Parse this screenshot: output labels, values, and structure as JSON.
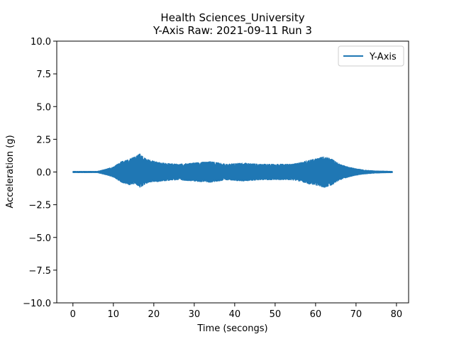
{
  "chart_data": {
    "type": "line",
    "title_line1": "Health Sciences_University",
    "title_line2": "Y-Axis Raw: 2021-09-11 Run 3",
    "xlabel": "Time (secongs)",
    "ylabel": "Acceleration (g)",
    "xlim": [
      -4,
      83
    ],
    "ylim": [
      -10.0,
      10.0
    ],
    "xticks": [
      0,
      10,
      20,
      30,
      40,
      50,
      60,
      70,
      80
    ],
    "xtick_labels": [
      "0",
      "10",
      "20",
      "30",
      "40",
      "50",
      "60",
      "70",
      "80"
    ],
    "yticks": [
      -10.0,
      -7.5,
      -5.0,
      -2.5,
      0.0,
      2.5,
      5.0,
      7.5,
      10.0
    ],
    "ytick_labels": [
      "−10.0",
      "−7.5",
      "−5.0",
      "−2.5",
      "0.0",
      "2.5",
      "5.0",
      "7.5",
      "10.0"
    ],
    "grid": false,
    "legend_position": "top-right",
    "series": [
      {
        "name": "Y-Axis",
        "color": "#1f77b4",
        "x_range": [
          0,
          79
        ],
        "envelope": {
          "t": [
            0,
            6,
            8,
            10,
            12,
            14,
            15.5,
            16.5,
            17.5,
            19,
            22,
            26,
            30,
            34,
            38,
            42,
            46,
            50,
            54,
            56,
            58,
            60,
            62,
            64,
            66,
            68,
            70,
            72,
            75,
            79
          ],
          "upper": [
            0.05,
            0.05,
            0.2,
            0.4,
            0.8,
            1.0,
            1.2,
            1.45,
            1.1,
            0.9,
            0.7,
            0.6,
            0.7,
            0.8,
            0.6,
            0.7,
            0.6,
            0.6,
            0.6,
            0.7,
            0.9,
            1.0,
            1.2,
            1.0,
            0.6,
            0.4,
            0.25,
            0.15,
            0.08,
            0.05
          ],
          "lower": [
            -0.05,
            -0.05,
            -0.2,
            -0.4,
            -0.8,
            -1.0,
            -0.9,
            -1.2,
            -1.0,
            -0.8,
            -0.7,
            -0.6,
            -0.7,
            -0.8,
            -0.6,
            -0.7,
            -0.6,
            -0.6,
            -0.6,
            -0.7,
            -0.9,
            -1.0,
            -1.2,
            -1.0,
            -0.6,
            -0.4,
            -0.25,
            -0.15,
            -0.08,
            -0.05
          ]
        }
      }
    ]
  }
}
